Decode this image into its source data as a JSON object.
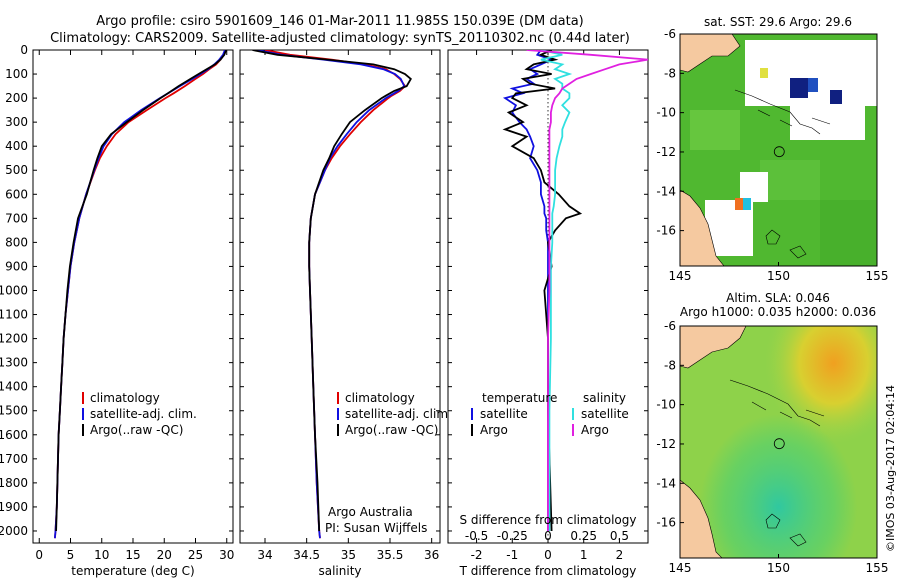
{
  "header": {
    "line1": "Argo profile: csiro 5901609_146 01-Mar-2011 11.985S 150.039E (DM data)",
    "line2": "Climatology: CARS2009. Satellite-adjusted climatology: synTS_20110302.nc (0.44d later)"
  },
  "colors": {
    "climatology": "#e00000",
    "satellite": "#1010e0",
    "argo": "#000000",
    "sat_salinity": "#30e0e0",
    "argo_salinity": "#e020e0",
    "land": "#f5c9a0"
  },
  "chart_data": [
    {
      "type": "line",
      "id": "temperature",
      "xlabel": "temperature (deg C)",
      "ylabel": "",
      "xlim": [
        -1,
        31
      ],
      "ylim": [
        2050,
        0
      ],
      "xticks": [
        0,
        5,
        10,
        15,
        20,
        25,
        30
      ],
      "yticks": [
        0,
        100,
        200,
        300,
        400,
        500,
        600,
        700,
        800,
        900,
        1000,
        1100,
        1200,
        1300,
        1400,
        1500,
        1600,
        1700,
        1800,
        1900,
        2000
      ],
      "legend": [
        "climatology",
        "satellite-adj. clim.",
        "Argo(..raw -QC)"
      ],
      "depth": [
        0,
        20,
        40,
        60,
        80,
        100,
        120,
        150,
        180,
        200,
        250,
        300,
        350,
        400,
        450,
        500,
        600,
        700,
        800,
        900,
        1000,
        1100,
        1200,
        1300,
        1400,
        1500,
        1600,
        1700,
        1800,
        1900,
        2000,
        2030
      ],
      "series": [
        {
          "name": "climatology",
          "values": [
            29.8,
            29.5,
            29.0,
            28.3,
            27.2,
            26.2,
            25.0,
            23.3,
            21.5,
            20.2,
            17.2,
            14.3,
            12.2,
            10.8,
            9.7,
            8.9,
            7.5,
            6.4,
            5.6,
            5.0,
            4.6,
            4.2,
            3.9,
            3.7,
            3.5,
            3.3,
            3.1,
            3.0,
            2.9,
            2.8,
            2.6,
            2.5
          ]
        },
        {
          "name": "satellite-adj. clim.",
          "values": [
            29.7,
            29.4,
            28.8,
            28.0,
            27.0,
            25.8,
            24.5,
            22.5,
            20.6,
            19.3,
            16.3,
            13.6,
            11.6,
            10.3,
            9.5,
            8.8,
            7.5,
            6.4,
            5.6,
            5.0,
            4.6,
            4.2,
            3.9,
            3.7,
            3.5,
            3.3,
            3.1,
            3.0,
            2.9,
            2.8,
            2.6,
            2.5
          ]
        },
        {
          "name": "Argo(..raw -QC)",
          "values": [
            29.9,
            29.6,
            29.0,
            28.1,
            26.8,
            25.5,
            24.2,
            22.3,
            20.6,
            19.4,
            16.6,
            14.0,
            11.5,
            10.0,
            9.3,
            8.7,
            7.6,
            6.2,
            5.5,
            4.9,
            4.5,
            4.2,
            3.9,
            3.7,
            3.5,
            3.3,
            3.1,
            3.0,
            2.9,
            2.8,
            2.7,
            null
          ]
        }
      ]
    },
    {
      "type": "line",
      "id": "salinity",
      "xlabel": "salinity",
      "ylabel": "",
      "xlim": [
        33.7,
        36.1
      ],
      "ylim": [
        2050,
        0
      ],
      "xticks": [
        34,
        34.5,
        35,
        35.5,
        36
      ],
      "legend": [
        "climatology",
        "satellite-adj. clim.",
        "Argo(..raw -QC)"
      ],
      "annotations": [
        "Argo Australia",
        "PI: Susan Wijffels"
      ],
      "depth": [
        0,
        20,
        40,
        60,
        80,
        100,
        120,
        150,
        170,
        190,
        200,
        250,
        300,
        350,
        400,
        450,
        500,
        600,
        700,
        800,
        900,
        1000,
        1200,
        1400,
        1600,
        1800,
        2000,
        2030
      ],
      "series": [
        {
          "name": "climatology",
          "values": [
            34.0,
            34.3,
            34.8,
            35.2,
            35.45,
            35.55,
            35.62,
            35.68,
            35.62,
            35.52,
            35.48,
            35.3,
            35.15,
            35.02,
            34.9,
            34.8,
            34.72,
            34.6,
            34.55,
            34.53,
            34.53,
            34.54,
            34.56,
            34.58,
            34.6,
            34.62,
            34.65,
            34.66
          ]
        },
        {
          "name": "satellite-adj. clim.",
          "values": [
            33.9,
            34.2,
            34.7,
            35.15,
            35.42,
            35.56,
            35.63,
            35.67,
            35.6,
            35.5,
            35.45,
            35.25,
            35.1,
            34.98,
            34.87,
            34.78,
            34.72,
            34.6,
            34.55,
            34.53,
            34.53,
            34.54,
            34.56,
            34.58,
            34.6,
            34.62,
            34.65,
            34.66
          ]
        },
        {
          "name": "Argo(..raw -QC)",
          "values": [
            33.85,
            34.15,
            34.75,
            35.3,
            35.55,
            35.68,
            35.75,
            35.7,
            35.55,
            35.45,
            35.4,
            35.2,
            35.02,
            34.92,
            34.83,
            34.77,
            34.7,
            34.6,
            34.55,
            34.53,
            34.53,
            34.54,
            34.56,
            34.58,
            34.6,
            34.63,
            34.65,
            null
          ]
        }
      ]
    },
    {
      "type": "line",
      "id": "difference",
      "xlabel": "T difference from climatology",
      "xlabel_top": "S difference from climatology",
      "xlim": [
        -2.8,
        2.8
      ],
      "ylim": [
        2050,
        0
      ],
      "xticks": [
        -2,
        -1,
        0,
        1,
        2
      ],
      "xticks_s": [
        -0.5,
        -0.25,
        0,
        0.25,
        0.5
      ],
      "legend_temperature": [
        "temperature",
        "satellite",
        "Argo"
      ],
      "legend_salinity": [
        "salinity",
        "satellite",
        "Argo"
      ],
      "depth": [
        0,
        20,
        40,
        60,
        80,
        100,
        120,
        140,
        160,
        180,
        200,
        230,
        260,
        300,
        330,
        360,
        400,
        450,
        500,
        550,
        600,
        650,
        680,
        700,
        750,
        800,
        900,
        1000,
        1200,
        1500,
        2000
      ],
      "series": [
        {
          "name": "T satellite",
          "values": [
            -0.2,
            -0.3,
            0.1,
            -0.2,
            -0.5,
            -0.3,
            -0.6,
            -0.4,
            -1.0,
            -0.7,
            -1.2,
            -0.9,
            -1.0,
            -0.8,
            -0.6,
            -0.5,
            -0.4,
            -0.5,
            -0.3,
            -0.2,
            -0.2,
            -0.1,
            -0.1,
            -0.05,
            -0.05,
            0,
            0,
            0,
            0,
            0,
            0
          ]
        },
        {
          "name": "T Argo",
          "values": [
            0.1,
            -0.2,
            0.2,
            -0.4,
            -0.6,
            0.1,
            -0.7,
            -0.5,
            0.2,
            -0.9,
            -1.0,
            -0.6,
            -1.1,
            -0.7,
            -1.2,
            -0.6,
            -1.0,
            -0.4,
            -0.2,
            -0.1,
            0.3,
            0.6,
            0.9,
            0.5,
            0.2,
            0.0,
            0.1,
            -0.1,
            0,
            0,
            0.1
          ]
        },
        {
          "name": "S satellite",
          "values": [
            -0.05,
            0.1,
            -0.05,
            0.1,
            0.05,
            0.15,
            0.05,
            0.1,
            0.1,
            0.15,
            0.15,
            0.1,
            0.15,
            0.12,
            0.1,
            0.1,
            0.08,
            0.06,
            0.05,
            0.05,
            0.05,
            0.04,
            0.03,
            0.03,
            0.03,
            0.03,
            0.02,
            0.02,
            0.02,
            0.01,
            0.01
          ]
        },
        {
          "name": "S Argo",
          "values": [
            -0.15,
            0.3,
            0.7,
            0.5,
            0.4,
            0.3,
            0.2,
            0.15,
            0.1,
            0.08,
            0.05,
            0.03,
            0.02,
            0.02,
            0.01,
            0.01,
            0.01,
            0.01,
            0.01,
            0.01,
            0.01,
            0.01,
            0.01,
            0.01,
            0.01,
            0.01,
            0.01,
            0.01,
            0,
            0,
            0
          ]
        }
      ]
    },
    {
      "type": "heatmap",
      "id": "sst_map",
      "title": "sat. SST: 29.6 Argo: 29.6",
      "xlim": [
        145,
        155
      ],
      "ylim": [
        -17.8,
        -6
      ],
      "xticks": [
        145,
        150,
        155
      ],
      "yticks": [
        -6,
        -8,
        -10,
        -12,
        -14,
        -16
      ],
      "marker": [
        150.039,
        -11.985
      ]
    },
    {
      "type": "heatmap",
      "id": "sla_map",
      "title": "Altim. SLA: 0.046",
      "subtitle": "Argo h1000: 0.035 h2000: 0.036",
      "xlim": [
        145,
        155
      ],
      "ylim": [
        -17.8,
        -6
      ],
      "xticks": [
        145,
        150,
        155
      ],
      "yticks": [
        -6,
        -8,
        -10,
        -12,
        -14,
        -16
      ],
      "marker": [
        150.039,
        -11.985
      ]
    }
  ],
  "footer": {
    "credit": "©IMOS 03-Aug-2017 02:04:14"
  }
}
